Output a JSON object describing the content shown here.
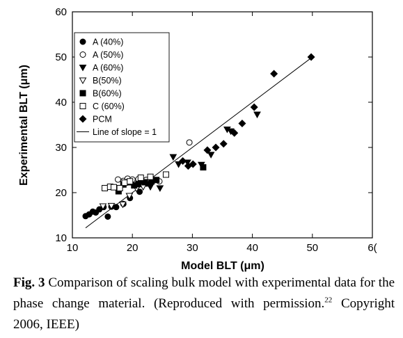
{
  "chart_data": {
    "type": "scatter",
    "title": "",
    "xlabel": "Model BLT (μm)",
    "ylabel": "Experimental BLT (μm)",
    "xlim": [
      10,
      60
    ],
    "ylim": [
      10,
      60
    ],
    "xticks": [
      "10",
      "20",
      "30",
      "40",
      "50",
      "6("
    ],
    "yticks": [
      "10",
      "20",
      "30",
      "40",
      "50",
      "60"
    ],
    "legend_position": "top-left",
    "series": [
      {
        "name": "A (40%)",
        "marker": "circle-filled",
        "points": [
          [
            12.2,
            14.8
          ],
          [
            12.8,
            15.2
          ],
          [
            13.4,
            15.8
          ],
          [
            13.9,
            15.6
          ],
          [
            14.5,
            16.3
          ],
          [
            15.2,
            16.8
          ],
          [
            15.9,
            14.7
          ],
          [
            16.5,
            16.9
          ],
          [
            17.3,
            16.8
          ],
          [
            18.5,
            17.5
          ],
          [
            19.6,
            18.8
          ],
          [
            21.2,
            20.2
          ],
          [
            22.4,
            22.0
          ]
        ]
      },
      {
        "name": "A (50%)",
        "marker": "circle-open",
        "points": [
          [
            17.6,
            22.9
          ],
          [
            18.5,
            22.6
          ],
          [
            19.2,
            23.1
          ],
          [
            20.0,
            22.9
          ],
          [
            21.0,
            23.0
          ],
          [
            22.3,
            22.8
          ],
          [
            24.5,
            22.5
          ],
          [
            29.5,
            31.1
          ]
        ]
      },
      {
        "name": "A (60%)",
        "marker": "triangle-down-filled",
        "points": [
          [
            21.5,
            22.0
          ],
          [
            23.0,
            21.3
          ],
          [
            24.6,
            21.0
          ],
          [
            26.8,
            27.9
          ],
          [
            27.7,
            26.3
          ],
          [
            29.2,
            26.7
          ],
          [
            31.5,
            26.2
          ],
          [
            33.1,
            28.4
          ],
          [
            35.8,
            34.0
          ],
          [
            36.4,
            33.6
          ],
          [
            40.8,
            37.3
          ]
        ]
      },
      {
        "name": "B(50%)",
        "marker": "triangle-down-open",
        "points": [
          [
            15.1,
            17.0
          ],
          [
            16.5,
            17.1
          ],
          [
            18.4,
            17.4
          ],
          [
            19.5,
            19.3
          ],
          [
            20.7,
            20.9
          ],
          [
            21.8,
            21.3
          ]
        ]
      },
      {
        "name": "B(60%)",
        "marker": "square-filled",
        "points": [
          [
            17.7,
            20.3
          ],
          [
            18.5,
            21.8
          ],
          [
            19.4,
            22.3
          ],
          [
            20.3,
            21.6
          ],
          [
            21.0,
            21.9
          ],
          [
            22.1,
            22.3
          ],
          [
            23.2,
            22.5
          ],
          [
            24.0,
            22.8
          ],
          [
            31.8,
            25.6
          ]
        ]
      },
      {
        "name": "C (60%)",
        "marker": "square-open",
        "points": [
          [
            15.4,
            21.0
          ],
          [
            16.3,
            21.3
          ],
          [
            16.9,
            21.2
          ],
          [
            17.9,
            21.0
          ],
          [
            18.7,
            22.2
          ],
          [
            19.6,
            22.5
          ],
          [
            21.4,
            23.3
          ],
          [
            23.0,
            23.5
          ],
          [
            25.6,
            24.0
          ]
        ]
      },
      {
        "name": "PCM",
        "marker": "diamond-filled",
        "points": [
          [
            28.4,
            27.0
          ],
          [
            29.3,
            25.9
          ],
          [
            30.1,
            26.3
          ],
          [
            32.5,
            29.4
          ],
          [
            33.9,
            30.0
          ],
          [
            35.2,
            30.8
          ],
          [
            37.0,
            33.2
          ],
          [
            38.3,
            35.3
          ],
          [
            40.3,
            38.9
          ],
          [
            43.6,
            46.3
          ],
          [
            49.8,
            50.0
          ]
        ]
      },
      {
        "name": "Line of slope = 1",
        "marker": "line",
        "points": [
          [
            12.2,
            12.2
          ],
          [
            49.8,
            49.8
          ]
        ]
      }
    ]
  },
  "caption": {
    "lead": "Fig. 3",
    "text": " Comparison of scaling bulk model with experimental data for the phase change material. (Reproduced with permission.",
    "ref": "22",
    "tail": " Copyright 2006, IEEE)"
  }
}
